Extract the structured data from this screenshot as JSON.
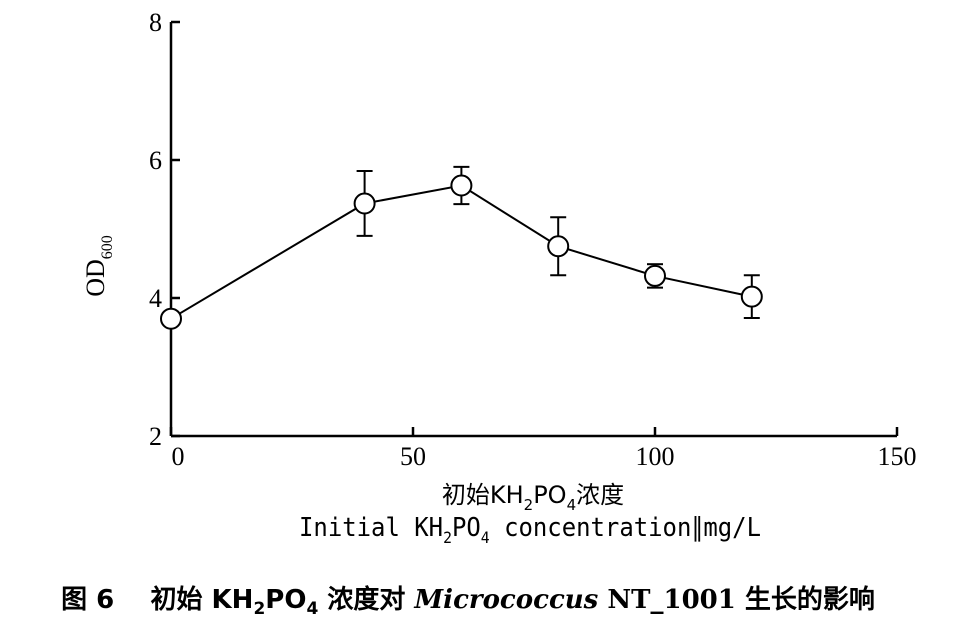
{
  "chart_data": {
    "type": "line",
    "x": [
      0,
      40,
      60,
      80,
      100,
      120
    ],
    "y": [
      3.7,
      5.37,
      5.63,
      4.75,
      4.32,
      4.02
    ],
    "yerr": [
      0.0,
      0.47,
      0.27,
      0.42,
      0.17,
      0.31
    ],
    "xlim": [
      0,
      150
    ],
    "ylim": [
      2,
      8
    ],
    "x_ticks": [
      0,
      50,
      100,
      150
    ],
    "y_ticks": [
      2,
      4,
      6,
      8
    ],
    "ylabel": {
      "main": "OD",
      "sub": "600"
    },
    "xlabel_cn": {
      "pre": "初始KH",
      "s1": "2",
      "mid": "PO",
      "s2": "4",
      "post": "浓度"
    },
    "xlabel_en": {
      "pre": "Initial KH",
      "s1": "2",
      "mid": "PO",
      "s2": "4",
      "post": " concentration∥mg/L"
    },
    "marker": "open-circle",
    "grid": false
  },
  "caption": {
    "label": "图 6",
    "pre": "初始 KH",
    "s1": "2",
    "mid": "PO",
    "s2": "4",
    "post1": " 浓度对 ",
    "italic": "Micrococcus",
    "bold_sb": " NT_1001",
    "post2": " 生长的影响"
  },
  "colors": {
    "line": "#000000",
    "marker_fill": "#ffffff",
    "background": "#ffffff"
  }
}
